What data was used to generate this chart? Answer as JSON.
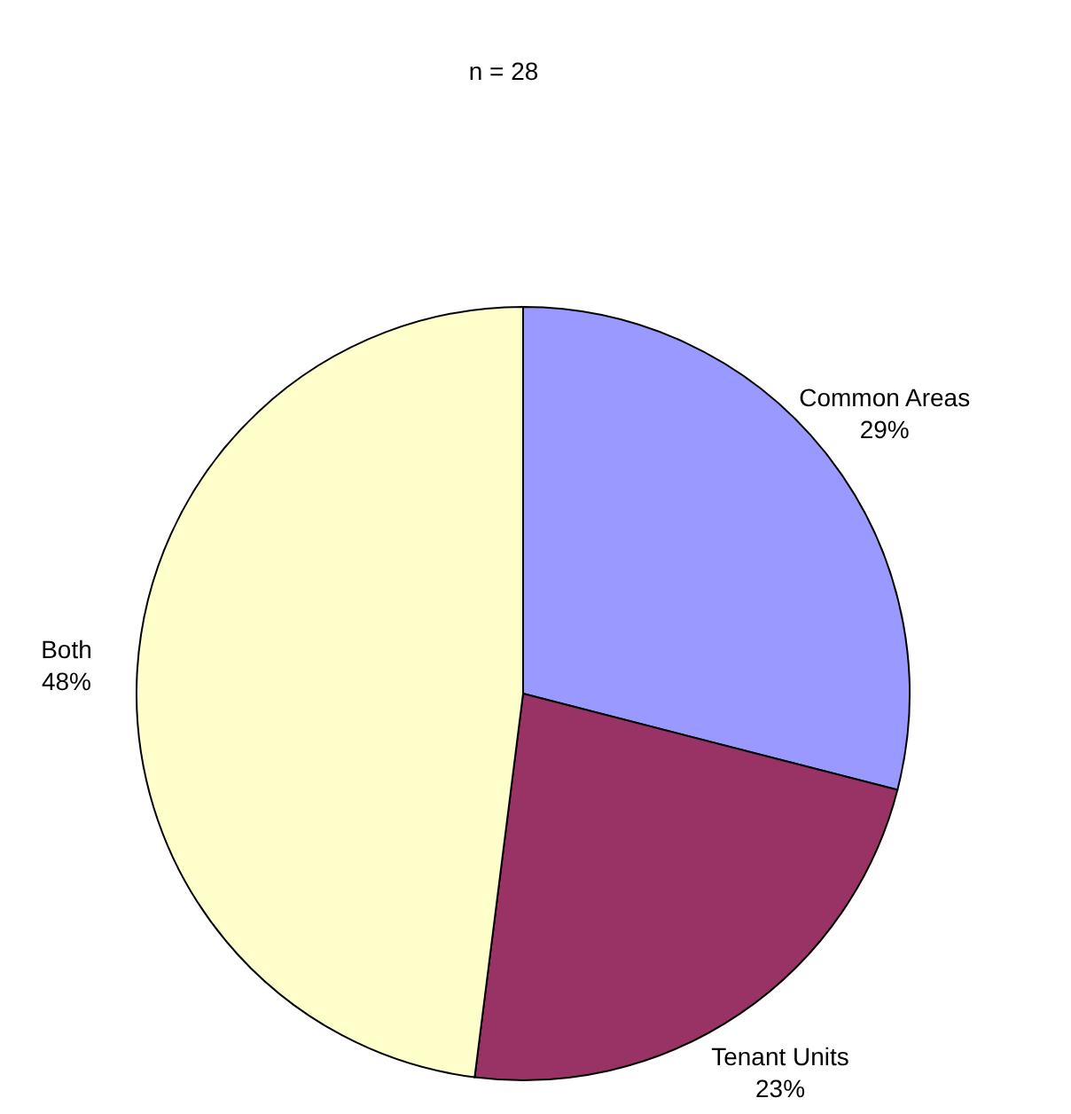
{
  "chart_data": {
    "type": "pie",
    "title": "n = 28",
    "categories": [
      "Common Areas",
      "Tenant Units",
      "Both"
    ],
    "values": [
      29,
      23,
      48
    ],
    "value_labels": [
      "29%",
      "23%",
      "48%"
    ],
    "colors": [
      "#9999ff",
      "#993366",
      "#ffffcc"
    ],
    "legend": false
  }
}
